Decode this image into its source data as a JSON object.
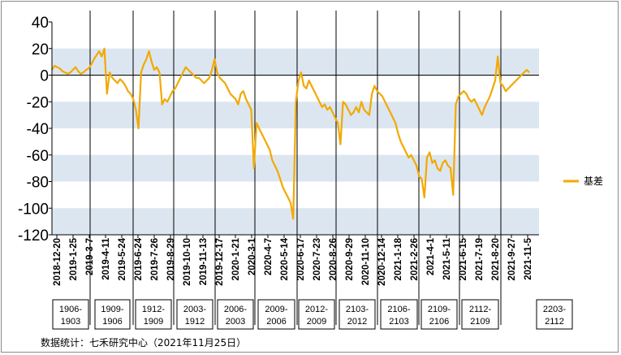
{
  "chart_data": {
    "type": "line",
    "title": "",
    "xlabel": "",
    "ylabel": "",
    "ylim": [
      -120,
      40
    ],
    "yticks": [
      "40",
      "20",
      "0",
      "-20",
      "-40",
      "-60",
      "-80",
      "-100",
      "-120"
    ],
    "band_color": "#dce6f0",
    "line_color": "#f2a900",
    "legend": {
      "label": "基差",
      "position": "right"
    },
    "x_tick_labels": [
      "2018-12-20",
      "2019-1-25",
      "2019-3-7",
      "2019-4-11",
      "2019-5-24",
      "2019-6-24",
      "2019-7-26",
      "2019-8-29",
      "2019-10-10",
      "2019-11-13",
      "2019-12-17",
      "2020-1-21",
      "2020-3-1",
      "2020-4-7",
      "2020-5-14",
      "2020-6-17",
      "2020-7-23",
      "2020-8-26",
      "2020-9-29",
      "2020-11-10",
      "2020-12-14",
      "2021-1-18",
      "2021-2-26",
      "2021-4-1",
      "2021-5-11",
      "2021-6-15",
      "2021-7-19",
      "2021-8-20",
      "2021-9-27",
      "2021-11-5"
    ],
    "contract_labels": [
      "1906-1903",
      "1909-1906",
      "1912-1909",
      "2003-1912",
      "2006-2003",
      "2009-2006",
      "2012-2009",
      "2103-2012",
      "2106-2103",
      "2109-2106",
      "2112-2109",
      "2203-2112"
    ],
    "series": [
      {
        "name": "基差",
        "values": [
          4,
          7,
          6,
          5,
          3,
          2,
          1,
          2,
          4,
          6,
          3,
          1,
          2,
          4,
          5,
          8,
          12,
          15,
          18,
          14,
          20,
          -14,
          2,
          -2,
          -4,
          -6,
          -3,
          -5,
          -8,
          -12,
          -14,
          -18,
          -26,
          -40,
          2,
          8,
          12,
          18,
          10,
          4,
          6,
          2,
          -22,
          -18,
          -20,
          -16,
          -12,
          -10,
          -6,
          -2,
          2,
          6,
          4,
          2,
          0,
          -2,
          -2,
          -4,
          -6,
          -4,
          -2,
          4,
          12,
          2,
          -2,
          -4,
          -6,
          -10,
          -14,
          -16,
          -18,
          -22,
          -14,
          -12,
          -18,
          -22,
          -26,
          -70,
          -36,
          -40,
          -44,
          -48,
          -52,
          -56,
          -64,
          -68,
          -72,
          -78,
          -84,
          -88,
          -92,
          -96,
          -108,
          -20,
          -4,
          2,
          -8,
          -10,
          -4,
          -8,
          -12,
          -16,
          -20,
          -24,
          -22,
          -26,
          -24,
          -28,
          -32,
          -36,
          -52,
          -20,
          -22,
          -26,
          -30,
          -28,
          -24,
          -28,
          -20,
          -26,
          -28,
          -30,
          -14,
          -8,
          -12,
          -14,
          -16,
          -20,
          -24,
          -28,
          -32,
          -36,
          -44,
          -50,
          -54,
          -58,
          -62,
          -60,
          -64,
          -68,
          -76,
          -78,
          -92,
          -62,
          -58,
          -66,
          -64,
          -70,
          -72,
          -66,
          -64,
          -68,
          -70,
          -90,
          -22,
          -16,
          -14,
          -12,
          -14,
          -18,
          -20,
          -18,
          -22,
          -26,
          -30,
          -24,
          -20,
          -16,
          -10,
          -4,
          14,
          -6,
          -8,
          -12,
          -10,
          -8,
          -6,
          -4,
          -2,
          0,
          2,
          4,
          2
        ]
      }
    ],
    "source": "数据统计：七禾研究中心（2021年11月25日）"
  }
}
